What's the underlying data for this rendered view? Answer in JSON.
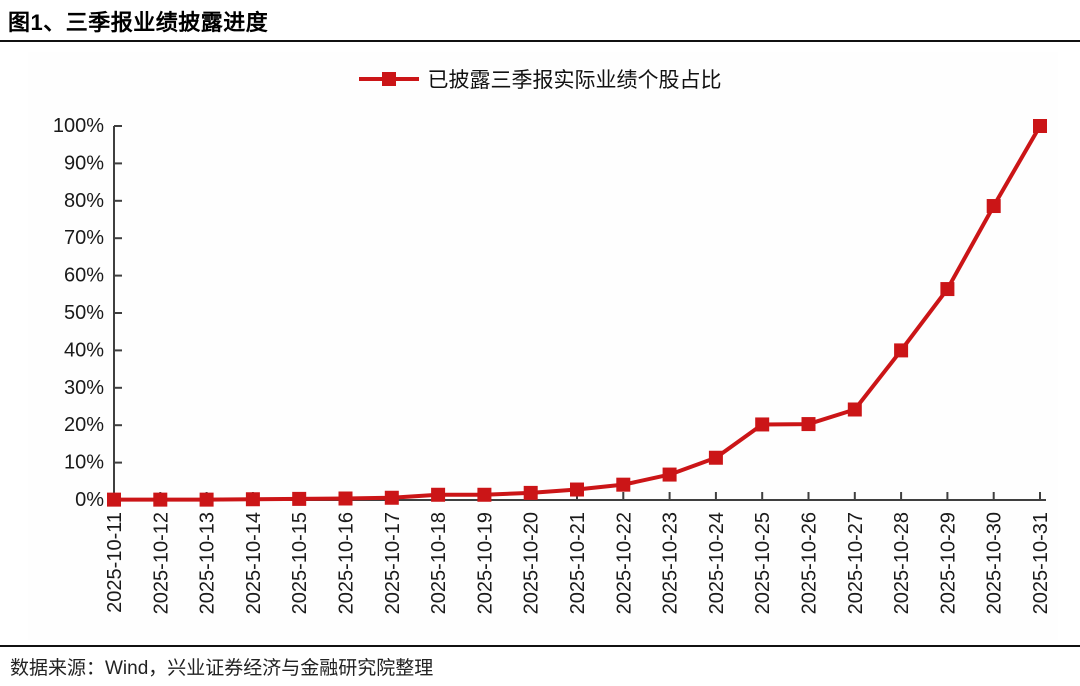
{
  "figure": {
    "title": "图1、三季报业绩披露进度"
  },
  "legend": {
    "label": "已披露三季报实际业绩个股占比"
  },
  "footer": {
    "source": "数据来源：Wind，兴业证券经济与金融研究院整理"
  },
  "colors": {
    "series_red": "#CB1517",
    "axis": "#3F3F3F",
    "label_text": "#1A1A1A"
  },
  "chart_data": {
    "type": "line",
    "title": "三季报业绩披露进度",
    "series": [
      {
        "name": "已披露三季报实际业绩个股占比",
        "values": [
          0.1,
          0.1,
          0.1,
          0.2,
          0.3,
          0.4,
          0.6,
          1.4,
          1.4,
          1.9,
          2.8,
          4.1,
          6.8,
          11.3,
          20.2,
          20.3,
          24.2,
          40.0,
          56.4,
          78.6,
          100.0
        ]
      }
    ],
    "x": [
      "2025-10-11",
      "2025-10-12",
      "2025-10-13",
      "2025-10-14",
      "2025-10-15",
      "2025-10-16",
      "2025-10-17",
      "2025-10-18",
      "2025-10-19",
      "2025-10-20",
      "2025-10-21",
      "2025-10-22",
      "2025-10-23",
      "2025-10-24",
      "2025-10-25",
      "2025-10-26",
      "2025-10-27",
      "2025-10-28",
      "2025-10-29",
      "2025-10-30",
      "2025-10-31"
    ],
    "xlabel": "",
    "ylabel": "",
    "ylim": [
      0,
      100
    ],
    "ytick_step": 10,
    "ytick_labels": [
      "0%",
      "10%",
      "20%",
      "30%",
      "40%",
      "50%",
      "60%",
      "70%",
      "80%",
      "90%",
      "100%"
    ],
    "grid": false,
    "legend_position": "top-center",
    "marker": "square",
    "x_label_rotation": -90
  }
}
